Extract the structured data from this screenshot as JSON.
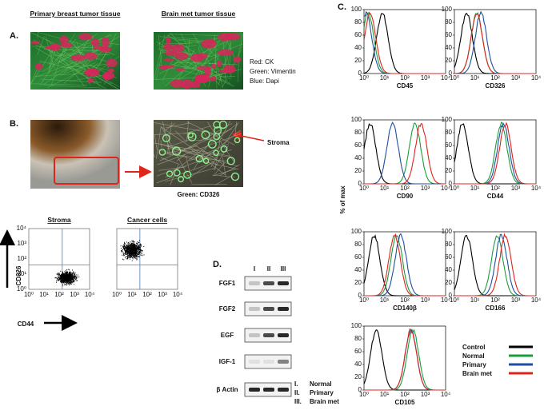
{
  "panel_a": {
    "label": "A.",
    "titles": [
      "Primary breast tumor tissue",
      "Brain met tumor tissue"
    ],
    "stain_legend": [
      "Red:  CK",
      "Green:  Vimentin",
      "Blue:  Dapi"
    ]
  },
  "panel_b": {
    "label": "B.",
    "arrow_label": "Stroma",
    "caption": "Green: CD326"
  },
  "flow": {
    "titles": [
      "Stroma",
      "Cancer cells"
    ],
    "ylabel": "CD326",
    "xlabel": "CD44",
    "ticks": [
      "10⁰",
      "10¹",
      "10²",
      "10³",
      "10⁴"
    ]
  },
  "panel_d": {
    "label": "D.",
    "lanes": [
      "I",
      "II",
      "III"
    ],
    "bands": [
      "FGF1",
      "FGF2",
      "EGF",
      "IGF-1",
      "β Actin"
    ],
    "lane_legend": [
      {
        "numeral": "I.",
        "name": "Normal"
      },
      {
        "numeral": "II.",
        "name": "Primary"
      },
      {
        "numeral": "III.",
        "name": "Brain met"
      }
    ]
  },
  "panel_c": {
    "label": "C.",
    "ylabel": "% of max",
    "yticks": [
      0,
      20,
      40,
      60,
      80,
      100
    ],
    "xticks": [
      "10⁰",
      "10¹",
      "10²",
      "10³",
      "10⁴"
    ],
    "series": [
      {
        "name": "Control",
        "color": "#000000"
      },
      {
        "name": "Normal",
        "color": "#1a9e3a"
      },
      {
        "name": "Primary",
        "color": "#1f4fa0"
      },
      {
        "name": "Brain met",
        "color": "#e0241b"
      }
    ],
    "histograms": [
      {
        "marker": "CD45",
        "peaks": [
          0.9,
          0.2,
          0.1,
          0.3
        ]
      },
      {
        "marker": "CD326",
        "peaks": [
          0.6,
          1.1,
          1.3,
          1.1
        ]
      },
      {
        "marker": "CD90",
        "peaks": [
          0.3,
          2.5,
          1.4,
          2.8
        ]
      },
      {
        "marker": "CD44",
        "peaks": [
          0.4,
          2.3,
          2.4,
          2.5
        ]
      },
      {
        "marker": "CD140β",
        "peaks": [
          0.5,
          1.6,
          1.8,
          1.5
        ]
      },
      {
        "marker": "CD166",
        "peaks": [
          0.6,
          2.1,
          2.3,
          2.5
        ]
      },
      {
        "marker": "CD105",
        "peaks": [
          0.6,
          2.4,
          2.3,
          2.3
        ]
      }
    ]
  }
}
